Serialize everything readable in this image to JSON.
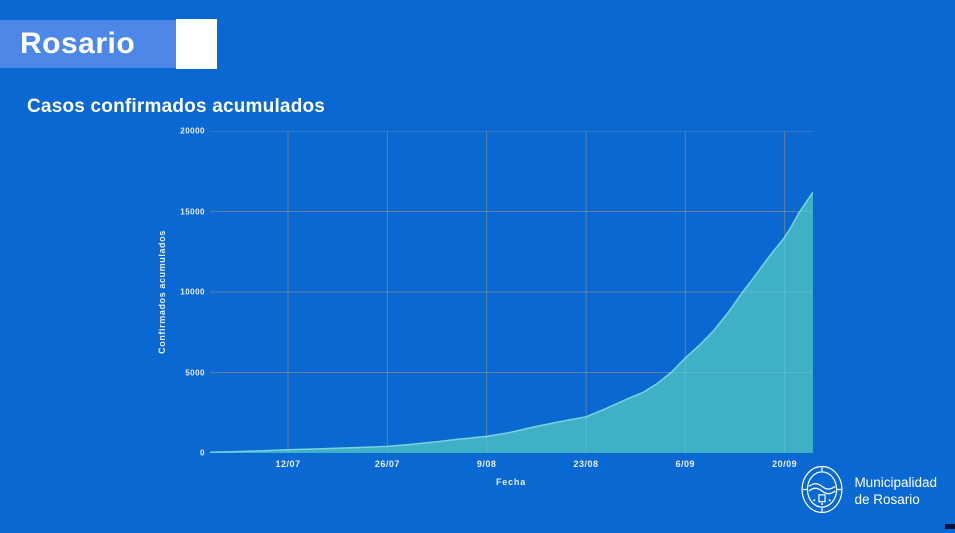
{
  "header": {
    "title": "Rosario"
  },
  "chart": {
    "title": "Casos confirmados acumulados",
    "xlabel": "Fecha",
    "ylabel": "Confirmados acumulados"
  },
  "chart_data": {
    "type": "area",
    "title": "Casos confirmados acumulados",
    "xlabel": "Fecha",
    "ylabel": "Confirmados acumulados",
    "ylim": [
      0,
      20000
    ],
    "y_ticks": [
      0,
      5000,
      10000,
      15000,
      20000
    ],
    "x_tick_labels": [
      "12/07",
      "26/07",
      "9/08",
      "23/08",
      "6/09",
      "20/09"
    ],
    "x_tick_days": [
      11,
      25,
      39,
      53,
      67,
      81
    ],
    "x_domain_days": [
      0,
      85
    ],
    "grid": true,
    "legend": "none",
    "series": [
      {
        "name": "Confirmados acumulados",
        "dates": [
          "1/07",
          "4/07",
          "8/07",
          "12/07",
          "15/07",
          "19/07",
          "22/07",
          "26/07",
          "29/07",
          "2/08",
          "5/08",
          "9/08",
          "12/08",
          "16/08",
          "19/08",
          "23/08",
          "26/08",
          "29/08",
          "31/08",
          "2/09",
          "4/09",
          "6/09",
          "8/09",
          "10/09",
          "12/09",
          "14/09",
          "16/09",
          "18/09",
          "20/09",
          "21/09",
          "22/09",
          "23/09",
          "24/09"
        ],
        "days": [
          0,
          3,
          7,
          11,
          14,
          18,
          21,
          25,
          28,
          32,
          35,
          39,
          42,
          46,
          49,
          53,
          56,
          59,
          61,
          63,
          65,
          67,
          69,
          71,
          73,
          75,
          77,
          79,
          81,
          82,
          83,
          84,
          85
        ],
        "values": [
          50,
          80,
          130,
          200,
          245,
          290,
          340,
          410,
          520,
          700,
          850,
          1030,
          1250,
          1650,
          1920,
          2250,
          2800,
          3400,
          3750,
          4300,
          5000,
          5900,
          6700,
          7600,
          8700,
          9950,
          11100,
          12300,
          13400,
          14100,
          14900,
          15550,
          16200
        ]
      }
    ]
  },
  "footer": {
    "logo_line1": "Municipalidad",
    "logo_line2": "de Rosario"
  },
  "colors": {
    "background": "#0a68d2",
    "header_band": "#4d88e8",
    "area_fill": "#3fb1c6",
    "area_line": "#7bd2dc",
    "gridline": "#4b6f96",
    "tick_text": "#e9eef5"
  }
}
